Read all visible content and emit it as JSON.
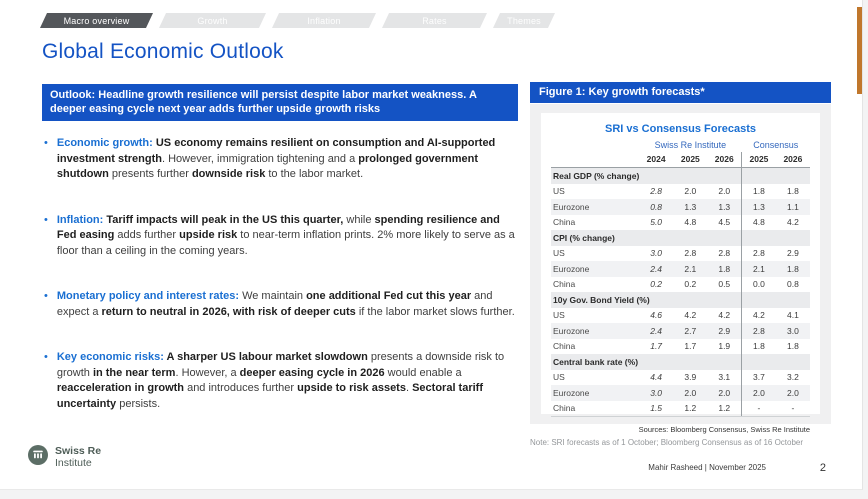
{
  "tabs": [
    {
      "label": "Macro overview",
      "active": true
    },
    {
      "label": "Growth",
      "active": false
    },
    {
      "label": "Inflation",
      "active": false
    },
    {
      "label": "Rates",
      "active": false
    },
    {
      "label": "Themes",
      "active": false
    }
  ],
  "page_title": "Global Economic Outlook",
  "outlook_banner": "Outlook: Headline growth resilience will persist despite labor market weakness. A deeper easing cycle next year adds further upside growth risks",
  "bullets": [
    {
      "heading": "Economic growth:",
      "segments": [
        {
          "t": "US economy remains resilient on consumption and AI-supported investment strength",
          "b": true
        },
        {
          "t": ". However, immigration tightening and a ",
          "b": false
        },
        {
          "t": "prolonged government shutdown",
          "b": true
        },
        {
          "t": " presents further ",
          "b": false
        },
        {
          "t": "downside risk",
          "b": true
        },
        {
          "t": " to the labor market.",
          "b": false
        }
      ]
    },
    {
      "heading": "Inflation:",
      "segments": [
        {
          "t": "Tariff impacts will peak in the US this quarter,",
          "b": true
        },
        {
          "t": " while ",
          "b": false
        },
        {
          "t": "spending resilience and Fed easing",
          "b": true
        },
        {
          "t": " adds further ",
          "b": false
        },
        {
          "t": "upside risk",
          "b": true
        },
        {
          "t": " to near-term inflation prints. 2% more likely to serve as a floor than a ceiling in the coming years.",
          "b": false
        }
      ]
    },
    {
      "heading": "Monetary policy and interest rates:",
      "segments": [
        {
          "t": "We maintain ",
          "b": false
        },
        {
          "t": "one additional Fed cut this year",
          "b": true
        },
        {
          "t": " and expect a ",
          "b": false
        },
        {
          "t": "return to neutral in 2026, with risk of deeper cuts",
          "b": true
        },
        {
          "t": " if the labor market slows further.",
          "b": false
        }
      ]
    },
    {
      "heading": "Key economic risks:",
      "segments": [
        {
          "t": "A sharper US labour market slowdown",
          "b": true
        },
        {
          "t": " presents a downside risk to growth ",
          "b": false
        },
        {
          "t": "in the near term",
          "b": true
        },
        {
          "t": ". However, a ",
          "b": false
        },
        {
          "t": "deeper easing cycle in 2026",
          "b": true
        },
        {
          "t": " would enable a ",
          "b": false
        },
        {
          "t": "reacceleration in growth",
          "b": true
        },
        {
          "t": " and introduces further ",
          "b": false
        },
        {
          "t": "upside to risk assets",
          "b": true
        },
        {
          "t": ". ",
          "b": false
        },
        {
          "t": "Sectoral tariff uncertainty",
          "b": true
        },
        {
          "t": " persists.",
          "b": false
        }
      ]
    }
  ],
  "figure": {
    "header": "Figure 1: Key growth forecasts*",
    "table": {
      "title": "SRI vs Consensus Forecasts",
      "group_headers": [
        "Swiss Re Institute",
        "Consensus"
      ],
      "year_headers": [
        "2024",
        "2025",
        "2026",
        "2025",
        "2026"
      ],
      "sections": [
        {
          "label": "Real GDP (% change)",
          "rows": [
            [
              "US",
              "2.8",
              "2.0",
              "2.0",
              "1.8",
              "1.8"
            ],
            [
              "Eurozone",
              "0.8",
              "1.3",
              "1.3",
              "1.3",
              "1.1"
            ],
            [
              "China",
              "5.0",
              "4.8",
              "4.5",
              "4.8",
              "4.2"
            ]
          ]
        },
        {
          "label": "CPI (% change)",
          "rows": [
            [
              "US",
              "3.0",
              "2.8",
              "2.8",
              "2.8",
              "2.9"
            ],
            [
              "Eurozone",
              "2.4",
              "2.1",
              "1.8",
              "2.1",
              "1.8"
            ],
            [
              "China",
              "0.2",
              "0.2",
              "0.5",
              "0.0",
              "0.8"
            ]
          ]
        },
        {
          "label": "10y Gov. Bond Yield (%)",
          "rows": [
            [
              "US",
              "4.6",
              "4.2",
              "4.2",
              "4.2",
              "4.1"
            ],
            [
              "Eurozone",
              "2.4",
              "2.7",
              "2.9",
              "2.8",
              "3.0"
            ],
            [
              "China",
              "1.7",
              "1.7",
              "1.9",
              "1.8",
              "1.8"
            ]
          ]
        },
        {
          "label": "Central bank rate (%)",
          "rows": [
            [
              "US",
              "4.4",
              "3.9",
              "3.1",
              "3.7",
              "3.2"
            ],
            [
              "Eurozone",
              "3.0",
              "2.0",
              "2.0",
              "2.0",
              "2.0"
            ],
            [
              "China",
              "1.5",
              "1.2",
              "1.2",
              "-",
              "-"
            ]
          ]
        }
      ],
      "sources": "Sources: Bloomberg Consensus, Swiss Re Institute"
    },
    "note": "Note: SRI forecasts as of 1 October; Bloomberg Consensus as of 16 October"
  },
  "footer": {
    "logo_primary": "Swiss Re",
    "logo_secondary": "Institute",
    "author_date": "Mahir Rasheed | November 2025",
    "page_number": "2"
  },
  "colors": {
    "accent_blue": "#1453c4",
    "bright_blue": "#1a6fd2",
    "tab_dark": "#54575b",
    "tab_light": "#e4e5e6",
    "orange_accent": "#c0772c",
    "logo_green": "#5c6e66"
  }
}
